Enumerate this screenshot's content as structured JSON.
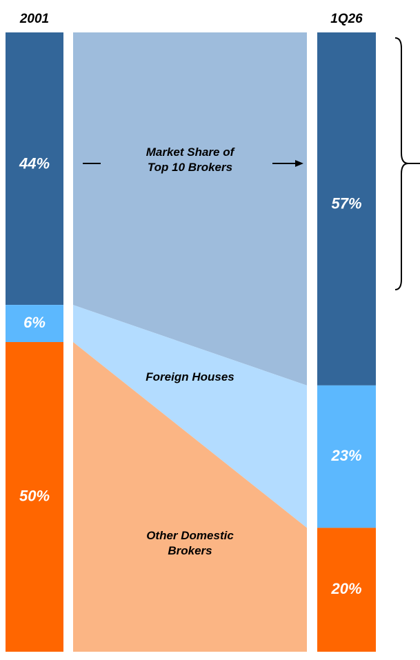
{
  "chart_data": {
    "type": "stacked-bar-flow",
    "categories": [
      "2001",
      "1Q26"
    ],
    "series": [
      {
        "name": "Market Share of Top 10 Brokers",
        "color": "#336699",
        "flow_color": "#9ebcdc",
        "values": [
          44,
          57
        ],
        "value_labels": [
          "44%",
          "57%"
        ]
      },
      {
        "name": "Foreign Houses",
        "color": "#5cb8fe",
        "flow_color": "#b3dcff",
        "values": [
          6,
          23
        ],
        "value_labels": [
          "6%",
          "23%"
        ]
      },
      {
        "name": "Other Domestic Brokers",
        "color": "#ff6600",
        "flow_color": "#fbb584",
        "values": [
          50,
          20
        ],
        "value_labels": [
          "50%",
          "20%"
        ]
      }
    ],
    "ylim": [
      0,
      100
    ]
  }
}
